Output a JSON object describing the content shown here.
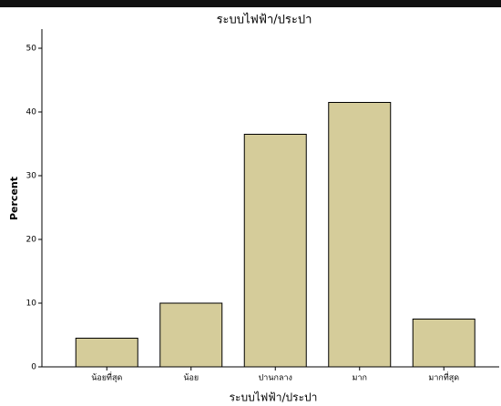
{
  "chart_data": {
    "type": "bar",
    "title": "ระบบไฟฟ้า/ประปา",
    "xlabel": "ระบบไฟฟ้า/ประปา",
    "ylabel": "Percent",
    "categories": [
      "น้อยที่สุด",
      "น้อย",
      "ปานกลาง",
      "มาก",
      "มากที่สุด"
    ],
    "values": [
      4.5,
      10,
      36.5,
      41.5,
      7.5
    ],
    "color": "#d5cc9a",
    "ylim": [
      0,
      53
    ],
    "yticks": [
      0,
      10,
      20,
      30,
      40,
      50
    ]
  }
}
